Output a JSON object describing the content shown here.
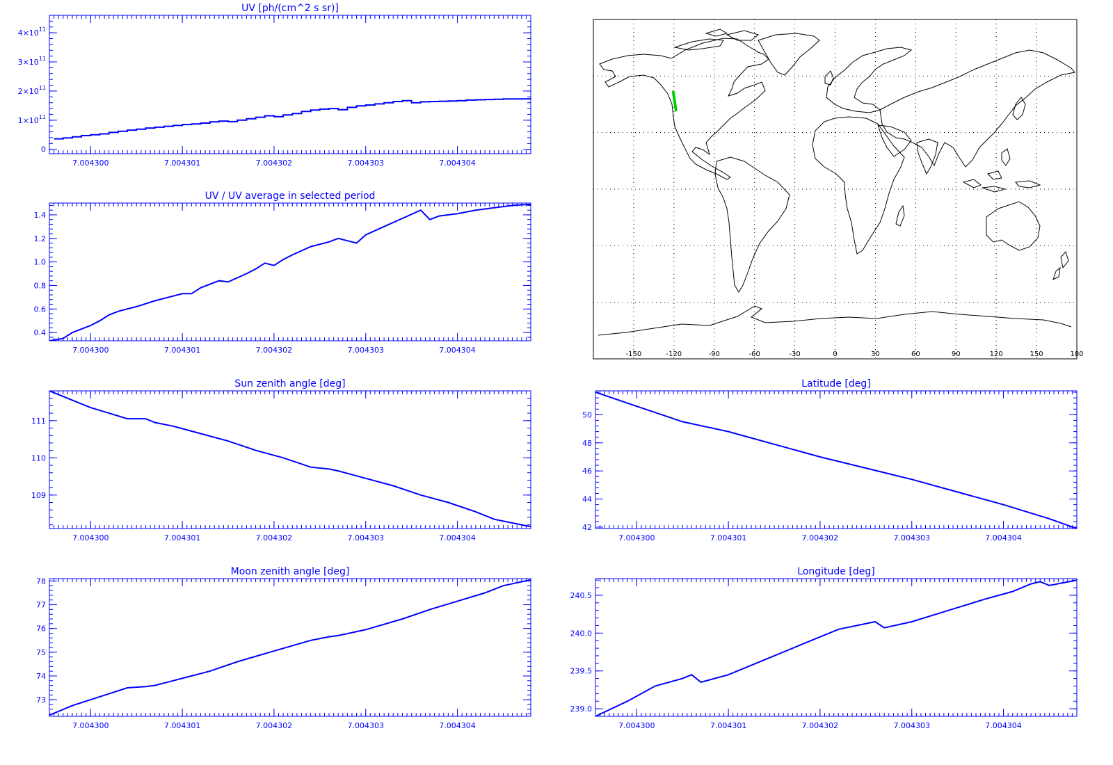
{
  "colors": {
    "axis": "#0000ff",
    "line": "#0000ff",
    "map_frame": "#000000",
    "track": "#00d000"
  },
  "chart_data": [
    {
      "type": "line",
      "title": "UV [ph/(cm^2 s sr)]",
      "step": true,
      "x": [
        7.0042996,
        7.0042997,
        7.0042998,
        7.0042999,
        7.0043,
        7.0043001,
        7.0043002,
        7.0043003,
        7.0043004,
        7.0043005,
        7.0043006,
        7.0043007,
        7.0043008,
        7.0043009,
        7.004301,
        7.0043011,
        7.0043012,
        7.0043013,
        7.0043014,
        7.0043015,
        7.0043016,
        7.0043017,
        7.0043018,
        7.0043019,
        7.004302,
        7.0043021,
        7.0043022,
        7.0043023,
        7.0043024,
        7.0043025,
        7.0043026,
        7.0043027,
        7.0043028,
        7.0043029,
        7.004303,
        7.0043031,
        7.0043032,
        7.0043033,
        7.0043034,
        7.0043035,
        7.0043036,
        7.0043037,
        7.0043038,
        7.0043039,
        7.004304,
        7.0043041,
        7.0043042,
        7.0043043,
        7.0043044,
        7.0043045,
        7.0043046,
        7.0043047,
        7.0043048
      ],
      "values": [
        36000000000.0,
        39000000000.0,
        43000000000.0,
        47000000000.0,
        50000000000.0,
        53000000000.0,
        58000000000.0,
        62000000000.0,
        66000000000.0,
        69000000000.0,
        73000000000.0,
        76000000000.0,
        79000000000.0,
        82000000000.0,
        85000000000.0,
        87000000000.0,
        90000000000.0,
        94000000000.0,
        97000000000.0,
        95000000000.0,
        100000000000.0,
        105000000000.0,
        110000000000.0,
        115000000000.0,
        112000000000.0,
        118000000000.0,
        123000000000.0,
        130000000000.0,
        135000000000.0,
        138000000000.0,
        140000000000.0,
        136000000000.0,
        144000000000.0,
        149000000000.0,
        152000000000.0,
        156000000000.0,
        160000000000.0,
        164000000000.0,
        167000000000.0,
        160000000000.0,
        163000000000.0,
        164000000000.0,
        165000000000.0,
        166000000000.0,
        167000000000.0,
        169000000000.0,
        170000000000.0,
        171000000000.0,
        172000000000.0,
        173000000000.0,
        173000000000.0,
        173000000000.0,
        174000000000.0
      ],
      "xlim": [
        7.00429955,
        7.0043048
      ],
      "ylim": [
        -15000000000.0,
        460000000000.0
      ],
      "xticks": [
        7.0043,
        7.004301,
        7.004302,
        7.004303,
        7.004304
      ],
      "xtick_labels": [
        "7.004300",
        "7.004301",
        "7.004302",
        "7.004303",
        "7.004304"
      ],
      "yticks": [
        0,
        100000000000.0,
        200000000000.0,
        300000000000.0,
        400000000000.0
      ],
      "ytick_labels": [
        {
          "base": "0",
          "exp": ""
        },
        {
          "base": "1×10",
          "exp": "11"
        },
        {
          "base": "2×10",
          "exp": "11"
        },
        {
          "base": "3×10",
          "exp": "11"
        },
        {
          "base": "4×10",
          "exp": "11"
        }
      ]
    },
    {
      "type": "line",
      "title": "UV / UV average in selected period",
      "x": [
        7.00429955,
        7.0042997,
        7.0042998,
        7.0042999,
        7.0043,
        7.0043001,
        7.0043002,
        7.0043003,
        7.0043005,
        7.0043007,
        7.0043009,
        7.004301,
        7.0043011,
        7.0043012,
        7.0043014,
        7.0043015,
        7.0043017,
        7.0043018,
        7.0043019,
        7.004302,
        7.0043021,
        7.0043022,
        7.0043024,
        7.0043026,
        7.0043027,
        7.0043028,
        7.0043029,
        7.004303,
        7.0043032,
        7.0043034,
        7.0043036,
        7.0043037,
        7.0043038,
        7.004304,
        7.0043042,
        7.0043044,
        7.0043046,
        7.0043048
      ],
      "values": [
        0.33,
        0.35,
        0.4,
        0.43,
        0.46,
        0.5,
        0.55,
        0.58,
        0.62,
        0.67,
        0.71,
        0.73,
        0.73,
        0.78,
        0.84,
        0.83,
        0.9,
        0.94,
        0.99,
        0.97,
        1.02,
        1.06,
        1.13,
        1.17,
        1.2,
        1.18,
        1.16,
        1.23,
        1.3,
        1.37,
        1.44,
        1.36,
        1.39,
        1.41,
        1.44,
        1.46,
        1.48,
        1.49
      ],
      "xlim": [
        7.00429955,
        7.0043048
      ],
      "ylim": [
        0.33,
        1.5
      ],
      "xticks": [
        7.0043,
        7.004301,
        7.004302,
        7.004303,
        7.004304
      ],
      "xtick_labels": [
        "7.004300",
        "7.004301",
        "7.004302",
        "7.004303",
        "7.004304"
      ],
      "yticks": [
        0.4,
        0.6,
        0.8,
        1.0,
        1.2,
        1.4
      ],
      "ytick_labels": [
        "0.4",
        "0.6",
        "0.8",
        "1.0",
        "1.2",
        "1.4"
      ]
    },
    {
      "type": "line",
      "title": "Sun zenith angle [deg]",
      "x": [
        7.00429955,
        7.0042998,
        7.0043,
        7.0043002,
        7.0043004,
        7.0043006,
        7.0043007,
        7.0043009,
        7.0043012,
        7.0043015,
        7.0043018,
        7.0043021,
        7.0043024,
        7.0043026,
        7.0043027,
        7.004303,
        7.0043033,
        7.0043036,
        7.0043039,
        7.0043042,
        7.0043044,
        7.0043046,
        7.0043048
      ],
      "values": [
        111.8,
        111.55,
        111.35,
        111.2,
        111.05,
        111.05,
        110.95,
        110.85,
        110.65,
        110.45,
        110.2,
        110.0,
        109.75,
        109.7,
        109.65,
        109.45,
        109.25,
        109.0,
        108.8,
        108.55,
        108.35,
        108.25,
        108.15
      ],
      "xlim": [
        7.00429955,
        7.0043048
      ],
      "ylim": [
        108.1,
        111.8
      ],
      "xticks": [
        7.0043,
        7.004301,
        7.004302,
        7.004303,
        7.004304
      ],
      "xtick_labels": [
        "7.004300",
        "7.004301",
        "7.004302",
        "7.004303",
        "7.004304"
      ],
      "yticks": [
        109,
        110,
        111
      ],
      "ytick_labels": [
        "109",
        "110",
        "111"
      ]
    },
    {
      "type": "line",
      "title": "Latitude [deg]",
      "x": [
        7.00429955,
        7.0043,
        7.0043005,
        7.004301,
        7.0043015,
        7.004302,
        7.0043025,
        7.004303,
        7.0043035,
        7.004304,
        7.0043045,
        7.0043048
      ],
      "values": [
        51.6,
        50.6,
        49.5,
        48.8,
        47.9,
        47.0,
        46.2,
        45.4,
        44.5,
        43.6,
        42.6,
        41.9
      ],
      "xlim": [
        7.00429955,
        7.0043048
      ],
      "ylim": [
        41.9,
        51.7
      ],
      "xticks": [
        7.0043,
        7.004301,
        7.004302,
        7.004303,
        7.004304
      ],
      "xtick_labels": [
        "7.004300",
        "7.004301",
        "7.004302",
        "7.004303",
        "7.004304"
      ],
      "yticks": [
        42,
        44,
        46,
        48,
        50
      ],
      "ytick_labels": [
        "42",
        "44",
        "46",
        "48",
        "50"
      ]
    },
    {
      "type": "line",
      "title": "Moon zenith angle [deg]",
      "x": [
        7.00429955,
        7.0042998,
        7.0043,
        7.0043002,
        7.0043004,
        7.0043006,
        7.0043007,
        7.0043008,
        7.004301,
        7.0043013,
        7.0043016,
        7.004302,
        7.0043024,
        7.0043026,
        7.0043027,
        7.004303,
        7.0043034,
        7.0043037,
        7.004304,
        7.0043043,
        7.0043045,
        7.0043048
      ],
      "values": [
        72.35,
        72.75,
        73.0,
        73.25,
        73.5,
        73.55,
        73.6,
        73.7,
        73.9,
        74.2,
        74.6,
        75.05,
        75.5,
        75.65,
        75.7,
        75.95,
        76.4,
        76.8,
        77.15,
        77.5,
        77.8,
        78.05
      ],
      "xlim": [
        7.00429955,
        7.0043048
      ],
      "ylim": [
        72.3,
        78.1
      ],
      "xticks": [
        7.0043,
        7.004301,
        7.004302,
        7.004303,
        7.004304
      ],
      "xtick_labels": [
        "7.004300",
        "7.004301",
        "7.004302",
        "7.004303",
        "7.004304"
      ],
      "yticks": [
        73,
        74,
        75,
        76,
        77,
        78
      ],
      "ytick_labels": [
        "73",
        "74",
        "75",
        "76",
        "77",
        "78"
      ]
    },
    {
      "type": "line",
      "title": "Longitude [deg]",
      "x": [
        7.00429955,
        7.0042999,
        7.0043002,
        7.0043005,
        7.0043006,
        7.0043007,
        7.004301,
        7.0043014,
        7.0043018,
        7.0043022,
        7.0043026,
        7.0043027,
        7.004303,
        7.0043034,
        7.0043038,
        7.0043041,
        7.0043043,
        7.0043044,
        7.0043045,
        7.0043048
      ],
      "values": [
        238.9,
        239.1,
        239.3,
        239.4,
        239.45,
        239.35,
        239.45,
        239.65,
        239.85,
        240.05,
        240.15,
        240.07,
        240.15,
        240.3,
        240.45,
        240.55,
        240.65,
        240.68,
        240.63,
        240.7
      ],
      "xlim": [
        7.00429955,
        7.0043048
      ],
      "ylim": [
        238.9,
        240.72
      ],
      "xticks": [
        7.0043,
        7.004301,
        7.004302,
        7.004303,
        7.004304
      ],
      "xtick_labels": [
        "7.004300",
        "7.004301",
        "7.004302",
        "7.004303",
        "7.004304"
      ],
      "yticks": [
        239.0,
        239.5,
        240.0,
        240.5
      ],
      "ytick_labels": [
        "239.0",
        "239.5",
        "240.0",
        "240.5"
      ]
    }
  ],
  "map": {
    "lon_range": [
      -180,
      180
    ],
    "lat_range": [
      -90,
      90
    ],
    "gridlines": "dotted",
    "xticks": [
      -150,
      -120,
      -90,
      -60,
      -30,
      0,
      30,
      60,
      90,
      120,
      150,
      180
    ],
    "xtick_labels": [
      "-150",
      "-120",
      "-90",
      "-60",
      "-30",
      "0",
      "30",
      "60",
      "90",
      "120",
      "150",
      "180"
    ],
    "track": {
      "lon": [
        -120.5,
        -118.5
      ],
      "lat": [
        51.5,
        41.9
      ]
    }
  }
}
